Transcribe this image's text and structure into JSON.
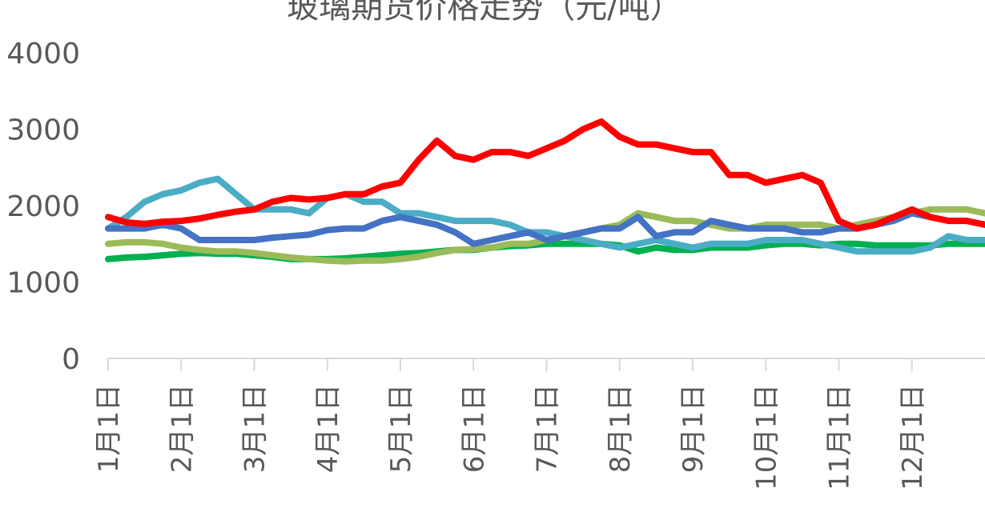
{
  "chart_data": {
    "type": "line",
    "title": "玻璃期货价格走势（元/吨）",
    "categories": [
      "1月1日",
      null,
      null,
      null,
      "2月1日",
      null,
      null,
      null,
      "3月1日",
      null,
      null,
      null,
      "4月1日",
      null,
      null,
      null,
      "5月1日",
      null,
      null,
      null,
      "6月1日",
      null,
      null,
      null,
      "7月1日",
      null,
      null,
      null,
      "8月1日",
      null,
      null,
      null,
      "9月1日",
      null,
      null,
      null,
      "10月1日",
      null,
      null,
      null,
      "11月1日",
      null,
      null,
      null,
      "12月1日",
      null,
      null,
      null,
      null
    ],
    "series": [
      {
        "color": "#00b050",
        "values": [
          1300,
          1320,
          1330,
          1350,
          1370,
          1380,
          1370,
          1370,
          1350,
          1330,
          1300,
          1300,
          1300,
          1310,
          1330,
          1350,
          1370,
          1380,
          1400,
          1420,
          1420,
          1450,
          1470,
          1480,
          1500,
          1500,
          1500,
          1500,
          1480,
          1400,
          1450,
          1420,
          1420,
          1450,
          1450,
          1450,
          1480,
          1500,
          1500,
          1480,
          1500,
          1500,
          1480,
          1480,
          1480,
          1480,
          1500,
          1500,
          1500
        ]
      },
      {
        "color": "#9bbb59",
        "values": [
          1500,
          1520,
          1520,
          1500,
          1450,
          1420,
          1400,
          1400,
          1380,
          1350,
          1320,
          1300,
          1280,
          1270,
          1280,
          1280,
          1300,
          1330,
          1380,
          1420,
          1430,
          1450,
          1500,
          1500,
          1550,
          1600,
          1650,
          1700,
          1750,
          1900,
          1850,
          1800,
          1800,
          1750,
          1700,
          1700,
          1750,
          1750,
          1750,
          1750,
          1700,
          1750,
          1800,
          1850,
          1900,
          1950,
          1950,
          1950,
          1900
        ]
      },
      {
        "color": "#4bacc6",
        "values": [
          1700,
          1850,
          2050,
          2150,
          2200,
          2300,
          2350,
          2150,
          1950,
          1950,
          1950,
          1900,
          2100,
          2150,
          2050,
          2050,
          1900,
          1900,
          1850,
          1800,
          1800,
          1800,
          1750,
          1650,
          1650,
          1600,
          1550,
          1500,
          1450,
          1500,
          1550,
          1500,
          1450,
          1500,
          1500,
          1500,
          1550,
          1550,
          1550,
          1500,
          1450,
          1400,
          1400,
          1400,
          1400,
          1450,
          1600,
          1550,
          1550
        ]
      },
      {
        "color": "#4472c4",
        "values": [
          1700,
          1700,
          1700,
          1750,
          1700,
          1550,
          1550,
          1550,
          1550,
          1580,
          1600,
          1620,
          1680,
          1700,
          1700,
          1800,
          1850,
          1800,
          1750,
          1650,
          1500,
          1550,
          1600,
          1650,
          1550,
          1600,
          1650,
          1700,
          1700,
          1850,
          1600,
          1650,
          1650,
          1800,
          1750,
          1700,
          1700,
          1700,
          1650,
          1650,
          1700,
          1700,
          1750,
          1800,
          1900,
          1850,
          null,
          null,
          null
        ]
      },
      {
        "color": "#ff0000",
        "values": [
          1850,
          1780,
          1760,
          1790,
          1800,
          1830,
          1880,
          1920,
          1950,
          2050,
          2100,
          2080,
          2100,
          2150,
          2150,
          2250,
          2300,
          2600,
          2850,
          2650,
          2600,
          2700,
          2700,
          2650,
          2750,
          2850,
          3000,
          3100,
          2900,
          2800,
          2800,
          2750,
          2700,
          2700,
          2400,
          2400,
          2300,
          2350,
          2400,
          2300,
          1800,
          1700,
          1750,
          1850,
          1950,
          1850,
          1800,
          1800,
          1750
        ]
      }
    ],
    "ylim": [
      0,
      4000
    ],
    "yticks": [
      0,
      1000,
      2000,
      3000,
      4000
    ],
    "grid": false
  }
}
